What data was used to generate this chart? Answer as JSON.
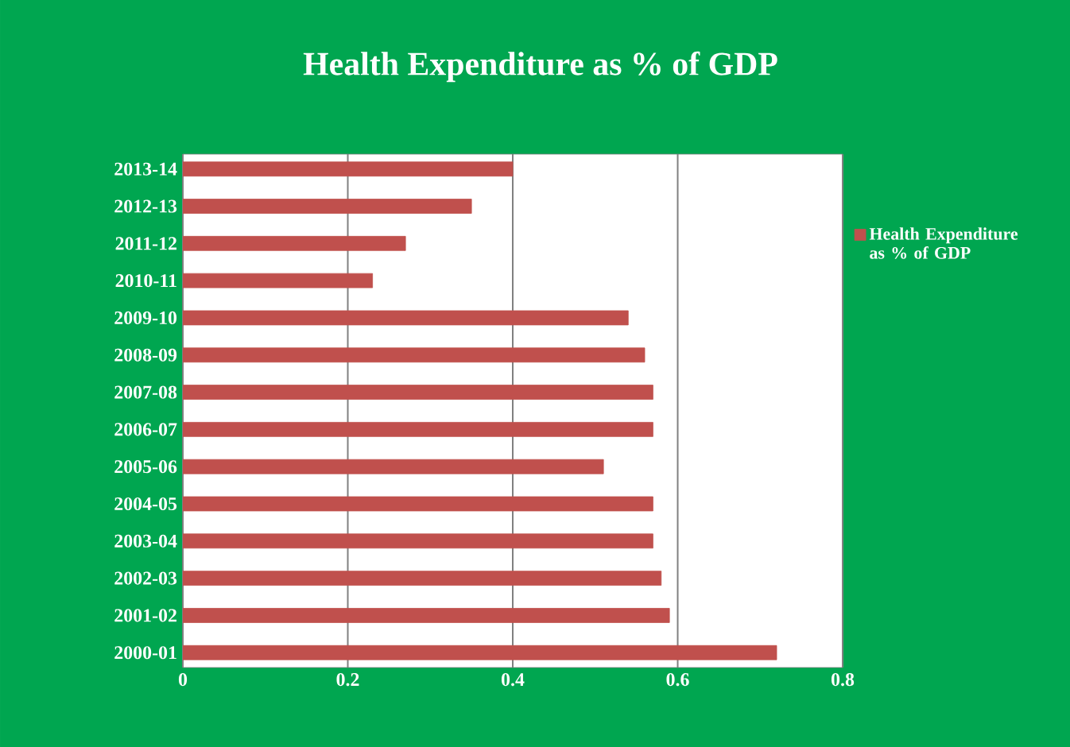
{
  "chart_data": {
    "type": "bar",
    "orientation": "horizontal",
    "title": "Health Expenditure as % of GDP",
    "categories": [
      "2013-14",
      "2012-13",
      "2011-12",
      "2010-11",
      "2009-10",
      "2008-09",
      "2007-08",
      "2006-07",
      "2005-06",
      "2004-05",
      "2003-04",
      "2002-03",
      "2001-02",
      "2000-01"
    ],
    "series": [
      {
        "name": "Health Expenditure as % of GDP",
        "color": "#c0504d",
        "values": [
          0.4,
          0.35,
          0.27,
          0.23,
          0.54,
          0.56,
          0.57,
          0.57,
          0.51,
          0.57,
          0.57,
          0.58,
          0.59,
          0.72
        ]
      }
    ],
    "xlim": [
      0,
      0.8
    ],
    "xticks": [
      0,
      0.2,
      0.4,
      0.6,
      0.8
    ],
    "grid": "x",
    "legend": "right"
  }
}
